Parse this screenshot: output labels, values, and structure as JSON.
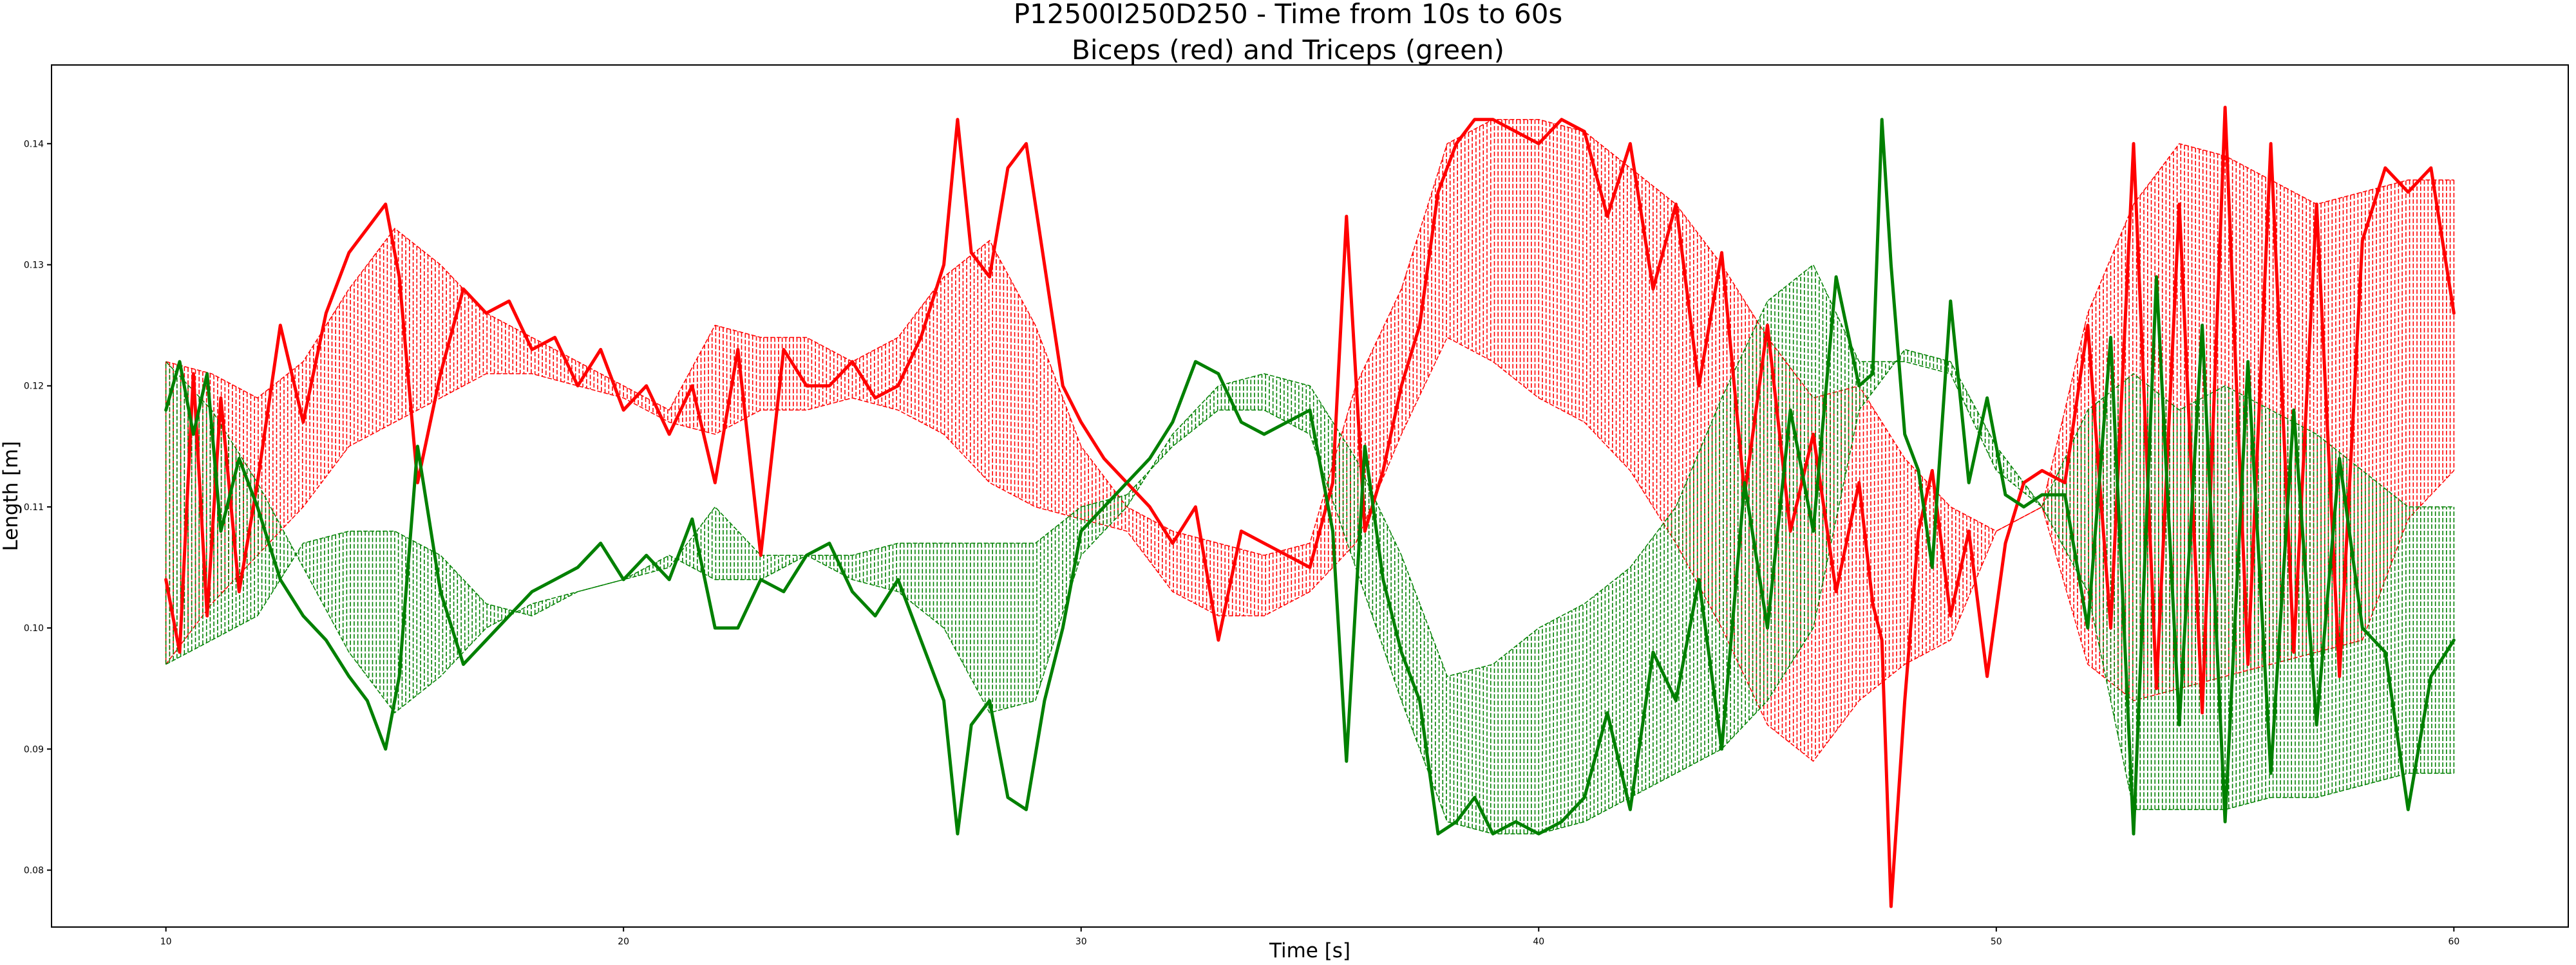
{
  "chart_data": {
    "type": "line",
    "title": "P12500I250D250 - Time from 10s to 60s",
    "subtitle": "Biceps (red) and Triceps (green)",
    "xlabel": "Time [s]",
    "ylabel": "Length [m]",
    "xlim": [
      7.5,
      62.5
    ],
    "ylim": [
      0.0753,
      0.1465
    ],
    "x_ticks": [
      10,
      20,
      30,
      40,
      50,
      60
    ],
    "y_ticks": [
      0.08,
      0.09,
      0.1,
      0.11,
      0.12,
      0.13,
      0.14
    ],
    "x_tick_labels": [
      "10",
      "20",
      "30",
      "40",
      "50",
      "60"
    ],
    "y_tick_labels": [
      "0.08",
      "0.09",
      "0.10",
      "0.11",
      "0.12",
      "0.13",
      "0.14"
    ],
    "grid": false,
    "legend": "none",
    "colors": {
      "biceps": "#ff0000",
      "triceps": "#008000",
      "axes": "#000000"
    },
    "series": [
      {
        "style": "solid",
        "color": "#ff0000",
        "x": [
          10,
          10.3,
          10.6,
          10.9,
          11.2,
          11.6,
          12,
          12.5,
          13,
          13.5,
          14,
          14.4,
          14.8,
          15.1,
          15.5,
          16,
          16.5,
          17,
          17.5,
          18,
          18.5,
          19,
          19.5,
          20,
          20.5,
          21,
          21.5,
          22,
          22.5,
          23,
          23.5,
          24,
          24.5,
          25,
          25.5,
          26,
          26.5,
          27,
          27.3,
          27.6,
          28,
          28.4,
          28.8,
          29.2,
          29.6,
          30,
          30.5,
          31,
          31.5,
          32,
          32.5,
          33,
          33.5,
          34,
          34.5,
          35,
          35.5,
          35.8,
          36.2,
          36.6,
          37,
          37.4,
          37.8,
          38.2,
          38.6,
          39,
          39.5,
          40,
          40.5,
          41,
          41.5,
          42,
          42.5,
          43,
          43.5,
          44,
          44.5,
          45,
          45.5,
          46,
          46.5,
          47,
          47.3,
          47.5,
          47.7,
          48,
          48.3,
          48.6,
          49,
          49.4,
          49.8,
          50.2,
          50.6,
          51,
          51.5,
          52,
          52.5,
          53,
          53.5,
          54,
          54.5,
          55,
          55.5,
          56,
          56.5,
          57,
          57.5,
          58,
          58.5,
          59,
          59.5,
          60
        ],
        "y": [
          0.104,
          0.098,
          0.121,
          0.101,
          0.119,
          0.103,
          0.112,
          0.125,
          0.117,
          0.126,
          0.131,
          0.133,
          0.135,
          0.129,
          0.112,
          0.121,
          0.128,
          0.126,
          0.127,
          0.123,
          0.124,
          0.12,
          0.123,
          0.118,
          0.12,
          0.116,
          0.12,
          0.112,
          0.123,
          0.106,
          0.123,
          0.12,
          0.12,
          0.122,
          0.119,
          0.12,
          0.124,
          0.13,
          0.142,
          0.131,
          0.129,
          0.138,
          0.14,
          0.13,
          0.12,
          0.117,
          0.114,
          0.112,
          0.11,
          0.107,
          0.11,
          0.099,
          0.108,
          0.107,
          0.106,
          0.105,
          0.112,
          0.134,
          0.108,
          0.113,
          0.12,
          0.125,
          0.136,
          0.14,
          0.142,
          0.142,
          0.141,
          0.14,
          0.142,
          0.141,
          0.134,
          0.14,
          0.128,
          0.135,
          0.12,
          0.131,
          0.111,
          0.125,
          0.108,
          0.116,
          0.103,
          0.112,
          0.102,
          0.099,
          0.077,
          0.094,
          0.108,
          0.113,
          0.101,
          0.108,
          0.096,
          0.107,
          0.112,
          0.113,
          0.112,
          0.125,
          0.1,
          0.14,
          0.095,
          0.135,
          0.093,
          0.143,
          0.097,
          0.14,
          0.098,
          0.135,
          0.096,
          0.132,
          0.138,
          0.136,
          0.138,
          0.126
        ]
      },
      {
        "style": "solid",
        "color": "#008000",
        "x": [
          10,
          10.3,
          10.6,
          10.9,
          11.2,
          11.6,
          12,
          12.5,
          13,
          13.5,
          14,
          14.4,
          14.8,
          15.1,
          15.5,
          16,
          16.5,
          17,
          17.5,
          18,
          18.5,
          19,
          19.5,
          20,
          20.5,
          21,
          21.5,
          22,
          22.5,
          23,
          23.5,
          24,
          24.5,
          25,
          25.5,
          26,
          26.5,
          27,
          27.3,
          27.6,
          28,
          28.4,
          28.8,
          29.2,
          29.6,
          30,
          30.5,
          31,
          31.5,
          32,
          32.5,
          33,
          33.5,
          34,
          34.5,
          35,
          35.5,
          35.8,
          36.2,
          36.6,
          37,
          37.4,
          37.8,
          38.2,
          38.6,
          39,
          39.5,
          40,
          40.5,
          41,
          41.5,
          42,
          42.5,
          43,
          43.5,
          44,
          44.5,
          45,
          45.5,
          46,
          46.5,
          47,
          47.3,
          47.5,
          47.7,
          48,
          48.3,
          48.6,
          49,
          49.4,
          49.8,
          50.2,
          50.6,
          51,
          51.5,
          52,
          52.5,
          53,
          53.5,
          54,
          54.5,
          55,
          55.5,
          56,
          56.5,
          57,
          57.5,
          58,
          58.5,
          59,
          59.5,
          60
        ],
        "y": [
          0.118,
          0.122,
          0.116,
          0.121,
          0.108,
          0.114,
          0.11,
          0.104,
          0.101,
          0.099,
          0.096,
          0.094,
          0.09,
          0.096,
          0.115,
          0.103,
          0.097,
          0.099,
          0.101,
          0.103,
          0.104,
          0.105,
          0.107,
          0.104,
          0.106,
          0.104,
          0.109,
          0.1,
          0.1,
          0.104,
          0.103,
          0.106,
          0.107,
          0.103,
          0.101,
          0.104,
          0.099,
          0.094,
          0.083,
          0.092,
          0.094,
          0.086,
          0.085,
          0.094,
          0.1,
          0.108,
          0.11,
          0.112,
          0.114,
          0.117,
          0.122,
          0.121,
          0.117,
          0.116,
          0.117,
          0.118,
          0.108,
          0.089,
          0.115,
          0.104,
          0.098,
          0.094,
          0.083,
          0.084,
          0.086,
          0.083,
          0.084,
          0.083,
          0.084,
          0.086,
          0.093,
          0.085,
          0.098,
          0.094,
          0.104,
          0.09,
          0.112,
          0.1,
          0.118,
          0.108,
          0.129,
          0.12,
          0.121,
          0.142,
          0.13,
          0.116,
          0.113,
          0.105,
          0.127,
          0.112,
          0.119,
          0.111,
          0.11,
          0.111,
          0.111,
          0.1,
          0.124,
          0.083,
          0.129,
          0.092,
          0.125,
          0.084,
          0.122,
          0.088,
          0.118,
          0.092,
          0.114,
          0.1,
          0.098,
          0.085,
          0.096,
          0.099
        ]
      },
      {
        "style": "dashed",
        "color": "#ff0000",
        "x": [
          10,
          11,
          12,
          13,
          14,
          15,
          16,
          17,
          18,
          19,
          20,
          21,
          22,
          23,
          24,
          25,
          26,
          27,
          28,
          29,
          30,
          31,
          32,
          33,
          34,
          35,
          36,
          37,
          38,
          39,
          40,
          41,
          42,
          43,
          44,
          45,
          46,
          47,
          48,
          49,
          50,
          51,
          52,
          53,
          54,
          55,
          56,
          57,
          58,
          59,
          60
        ],
        "y": [
          0.122,
          0.121,
          0.119,
          0.122,
          0.128,
          0.133,
          0.13,
          0.126,
          0.124,
          0.122,
          0.12,
          0.118,
          0.125,
          0.124,
          0.124,
          0.122,
          0.124,
          0.129,
          0.132,
          0.125,
          0.115,
          0.11,
          0.108,
          0.107,
          0.106,
          0.107,
          0.12,
          0.128,
          0.14,
          0.142,
          0.142,
          0.141,
          0.138,
          0.135,
          0.13,
          0.124,
          0.119,
          0.12,
          0.114,
          0.11,
          0.108,
          0.11,
          0.126,
          0.135,
          0.14,
          0.139,
          0.137,
          0.135,
          0.136,
          0.137,
          0.137
        ],
        "y_low": [
          0.097,
          0.102,
          0.106,
          0.11,
          0.115,
          0.117,
          0.119,
          0.121,
          0.121,
          0.12,
          0.119,
          0.117,
          0.116,
          0.118,
          0.118,
          0.119,
          0.118,
          0.116,
          0.112,
          0.11,
          0.109,
          0.108,
          0.103,
          0.101,
          0.101,
          0.103,
          0.107,
          0.116,
          0.124,
          0.122,
          0.119,
          0.117,
          0.113,
          0.107,
          0.1,
          0.092,
          0.089,
          0.094,
          0.097,
          0.099,
          0.108,
          0.11,
          0.097,
          0.094,
          0.095,
          0.096,
          0.097,
          0.098,
          0.099,
          0.109,
          0.113
        ]
      },
      {
        "style": "dashed",
        "color": "#008000",
        "x": [
          10,
          11,
          12,
          13,
          14,
          15,
          16,
          17,
          18,
          19,
          20,
          21,
          22,
          23,
          24,
          25,
          26,
          27,
          28,
          29,
          30,
          31,
          32,
          33,
          34,
          35,
          36,
          37,
          38,
          39,
          40,
          41,
          42,
          43,
          44,
          45,
          46,
          47,
          48,
          49,
          50,
          51,
          52,
          53,
          54,
          55,
          56,
          57,
          58,
          59,
          60
        ],
        "y": [
          0.097,
          0.099,
          0.101,
          0.107,
          0.108,
          0.108,
          0.106,
          0.102,
          0.101,
          0.103,
          0.104,
          0.106,
          0.104,
          0.104,
          0.106,
          0.106,
          0.107,
          0.107,
          0.107,
          0.107,
          0.11,
          0.111,
          0.115,
          0.118,
          0.118,
          0.116,
          0.105,
          0.094,
          0.084,
          0.083,
          0.083,
          0.084,
          0.086,
          0.088,
          0.09,
          0.094,
          0.1,
          0.118,
          0.123,
          0.122,
          0.115,
          0.11,
          0.103,
          0.085,
          0.085,
          0.085,
          0.086,
          0.086,
          0.087,
          0.088,
          0.088
        ],
        "y_low": [
          0.122,
          0.118,
          0.112,
          0.105,
          0.098,
          0.093,
          0.096,
          0.1,
          0.102,
          0.103,
          0.104,
          0.105,
          0.11,
          0.106,
          0.106,
          0.104,
          0.103,
          0.1,
          0.093,
          0.094,
          0.106,
          0.11,
          0.116,
          0.12,
          0.121,
          0.12,
          0.114,
          0.106,
          0.096,
          0.097,
          0.1,
          0.102,
          0.105,
          0.11,
          0.119,
          0.127,
          0.13,
          0.122,
          0.122,
          0.121,
          0.113,
          0.11,
          0.118,
          0.121,
          0.118,
          0.12,
          0.118,
          0.116,
          0.113,
          0.11,
          0.11
        ]
      }
    ]
  }
}
